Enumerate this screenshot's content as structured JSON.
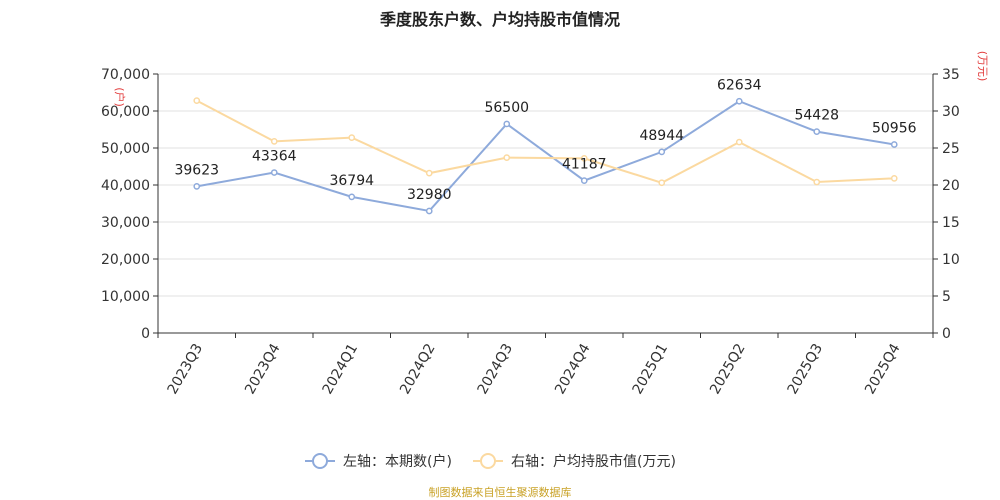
{
  "title": "季度股东户数、户均持股市值情况",
  "footer": "制图数据来自恒生聚源数据库",
  "chart_data": {
    "type": "line",
    "categories": [
      "2023Q3",
      "2023Q4",
      "2024Q1",
      "2024Q2",
      "2024Q3",
      "2024Q4",
      "2025Q1",
      "2025Q2",
      "2025Q3",
      "2025Q4"
    ],
    "left_axis": {
      "unit": "(户)",
      "ylim": [
        0,
        70000
      ],
      "ticks": [
        "0",
        "10,000",
        "20,000",
        "30,000",
        "40,000",
        "50,000",
        "60,000",
        "70,000"
      ]
    },
    "right_axis": {
      "unit": "(万元)",
      "ylim": [
        0,
        35
      ],
      "ticks": [
        "0",
        "5",
        "10",
        "15",
        "20",
        "25",
        "30",
        "35"
      ]
    },
    "series": [
      {
        "name": "左轴：本期数(户)",
        "axis": "left",
        "color": "#8eaadb",
        "values": [
          39623,
          43364,
          36794,
          32980,
          56500,
          41187,
          48944,
          62634,
          54428,
          50956
        ],
        "labels": [
          "39623",
          "43364",
          "36794",
          "32980",
          "56500",
          "41187",
          "48944",
          "62634",
          "54428",
          "50956"
        ]
      },
      {
        "name": "右轴：户均持股市值(万元)",
        "axis": "right",
        "color": "#fbd9a0",
        "values": [
          31.4,
          25.9,
          26.4,
          21.6,
          23.7,
          23.6,
          20.3,
          25.8,
          20.4,
          20.9
        ]
      }
    ],
    "grid": "horizontal",
    "legend_position": "bottom"
  }
}
